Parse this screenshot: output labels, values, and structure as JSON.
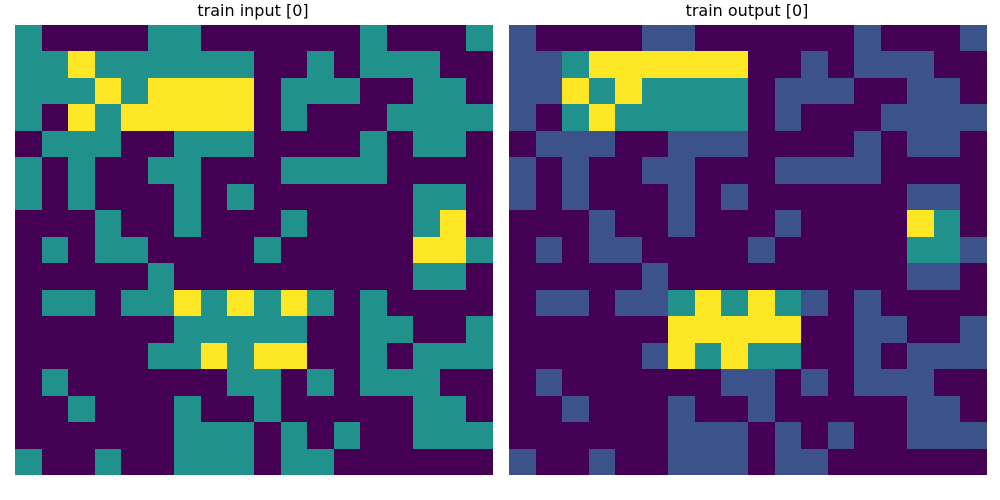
{
  "palette": {
    "0": "#440154",
    "1": "#3b528b",
    "2": "#21918c",
    "3": "#fde725"
  },
  "panels": [
    {
      "title": "train input [0]",
      "grid": [
        [
          2,
          0,
          0,
          0,
          0,
          2,
          2,
          0,
          0,
          0,
          0,
          0,
          0,
          2,
          0,
          0,
          0,
          2
        ],
        [
          2,
          2,
          3,
          2,
          2,
          2,
          2,
          2,
          2,
          0,
          0,
          2,
          0,
          2,
          2,
          2,
          0,
          0
        ],
        [
          2,
          2,
          2,
          3,
          2,
          3,
          3,
          3,
          3,
          0,
          2,
          2,
          2,
          0,
          0,
          2,
          2,
          0
        ],
        [
          2,
          0,
          3,
          2,
          3,
          3,
          3,
          3,
          3,
          0,
          2,
          0,
          0,
          0,
          2,
          2,
          2,
          2
        ],
        [
          0,
          2,
          2,
          2,
          0,
          0,
          2,
          2,
          2,
          0,
          0,
          0,
          0,
          2,
          0,
          2,
          2,
          0
        ],
        [
          2,
          0,
          2,
          0,
          0,
          2,
          2,
          0,
          0,
          0,
          2,
          2,
          2,
          2,
          0,
          0,
          0,
          0
        ],
        [
          2,
          0,
          2,
          0,
          0,
          0,
          2,
          0,
          2,
          0,
          0,
          0,
          0,
          0,
          0,
          2,
          2,
          0
        ],
        [
          0,
          0,
          0,
          2,
          0,
          0,
          2,
          0,
          0,
          0,
          2,
          0,
          0,
          0,
          0,
          2,
          3,
          0
        ],
        [
          0,
          2,
          0,
          2,
          2,
          0,
          0,
          0,
          0,
          2,
          0,
          0,
          0,
          0,
          0,
          3,
          3,
          2
        ],
        [
          0,
          0,
          0,
          0,
          0,
          2,
          0,
          0,
          0,
          0,
          0,
          0,
          0,
          0,
          0,
          2,
          2,
          0
        ],
        [
          0,
          2,
          2,
          0,
          2,
          2,
          3,
          2,
          3,
          2,
          3,
          2,
          0,
          2,
          0,
          0,
          0,
          0
        ],
        [
          0,
          0,
          0,
          0,
          0,
          0,
          2,
          2,
          2,
          2,
          2,
          0,
          0,
          2,
          2,
          0,
          0,
          2
        ],
        [
          0,
          0,
          0,
          0,
          0,
          2,
          2,
          3,
          2,
          3,
          3,
          0,
          0,
          2,
          0,
          2,
          2,
          2
        ],
        [
          0,
          2,
          0,
          0,
          0,
          0,
          0,
          0,
          2,
          2,
          0,
          2,
          0,
          2,
          2,
          2,
          0,
          0
        ],
        [
          0,
          0,
          2,
          0,
          0,
          0,
          2,
          0,
          0,
          2,
          0,
          0,
          0,
          0,
          0,
          2,
          2,
          0
        ],
        [
          0,
          0,
          0,
          0,
          0,
          0,
          2,
          2,
          2,
          0,
          2,
          0,
          2,
          0,
          0,
          2,
          2,
          2
        ],
        [
          2,
          0,
          0,
          2,
          0,
          0,
          2,
          2,
          2,
          0,
          2,
          2,
          0,
          0,
          0,
          0,
          0,
          0
        ]
      ]
    },
    {
      "title": "train output [0]",
      "grid": [
        [
          1,
          0,
          0,
          0,
          0,
          1,
          1,
          0,
          0,
          0,
          0,
          0,
          0,
          1,
          0,
          0,
          0,
          1
        ],
        [
          1,
          1,
          2,
          3,
          3,
          3,
          3,
          3,
          3,
          0,
          0,
          1,
          0,
          1,
          1,
          1,
          0,
          0
        ],
        [
          1,
          1,
          3,
          2,
          3,
          2,
          2,
          2,
          2,
          0,
          1,
          1,
          1,
          0,
          0,
          1,
          1,
          0
        ],
        [
          1,
          0,
          2,
          3,
          2,
          2,
          2,
          2,
          2,
          0,
          1,
          0,
          0,
          0,
          1,
          1,
          1,
          1
        ],
        [
          0,
          1,
          1,
          1,
          0,
          0,
          1,
          1,
          1,
          0,
          0,
          0,
          0,
          1,
          0,
          1,
          1,
          0
        ],
        [
          1,
          0,
          1,
          0,
          0,
          1,
          1,
          0,
          0,
          0,
          1,
          1,
          1,
          1,
          0,
          0,
          0,
          0
        ],
        [
          1,
          0,
          1,
          0,
          0,
          0,
          1,
          0,
          1,
          0,
          0,
          0,
          0,
          0,
          0,
          1,
          1,
          0
        ],
        [
          0,
          0,
          0,
          1,
          0,
          0,
          1,
          0,
          0,
          0,
          1,
          0,
          0,
          0,
          0,
          3,
          2,
          0
        ],
        [
          0,
          1,
          0,
          1,
          1,
          0,
          0,
          0,
          0,
          1,
          0,
          0,
          0,
          0,
          0,
          2,
          2,
          1
        ],
        [
          0,
          0,
          0,
          0,
          0,
          1,
          0,
          0,
          0,
          0,
          0,
          0,
          0,
          0,
          0,
          1,
          1,
          0
        ],
        [
          0,
          1,
          1,
          0,
          1,
          1,
          2,
          3,
          2,
          3,
          2,
          1,
          0,
          1,
          0,
          0,
          0,
          0
        ],
        [
          0,
          0,
          0,
          0,
          0,
          0,
          3,
          3,
          3,
          3,
          3,
          0,
          0,
          1,
          1,
          0,
          0,
          1
        ],
        [
          0,
          0,
          0,
          0,
          0,
          1,
          3,
          2,
          3,
          2,
          2,
          0,
          0,
          1,
          0,
          1,
          1,
          1
        ],
        [
          0,
          1,
          0,
          0,
          0,
          0,
          0,
          0,
          1,
          1,
          0,
          1,
          0,
          1,
          1,
          1,
          0,
          0
        ],
        [
          0,
          0,
          1,
          0,
          0,
          0,
          1,
          0,
          0,
          1,
          0,
          0,
          0,
          0,
          0,
          1,
          1,
          0
        ],
        [
          0,
          0,
          0,
          0,
          0,
          0,
          1,
          1,
          1,
          0,
          1,
          0,
          1,
          0,
          0,
          1,
          1,
          1
        ],
        [
          1,
          0,
          0,
          1,
          0,
          0,
          1,
          1,
          1,
          0,
          1,
          1,
          0,
          0,
          0,
          0,
          0,
          0
        ]
      ]
    }
  ]
}
